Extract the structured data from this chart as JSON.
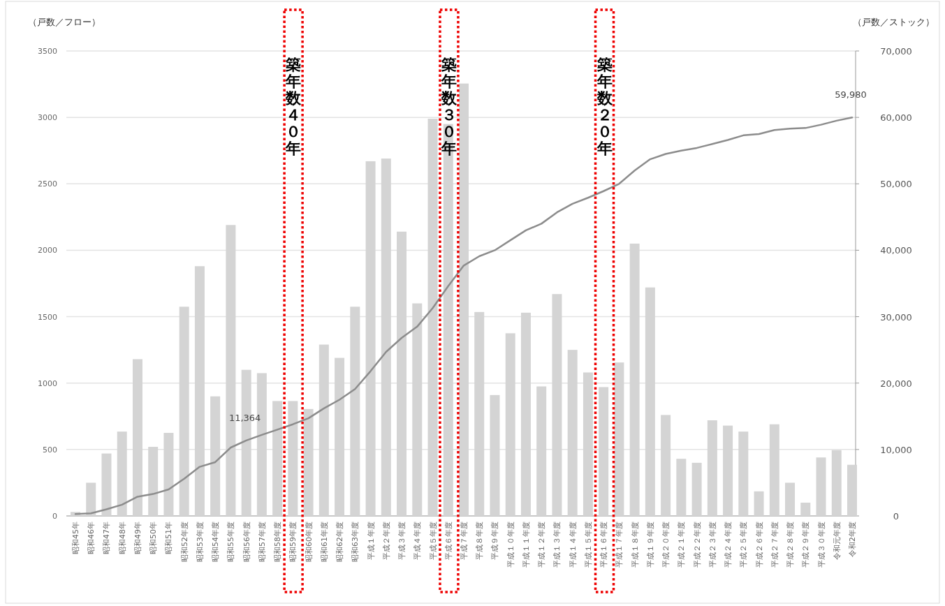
{
  "chart_data": {
    "type": "bar",
    "ylabel": "（戸数／フロー）",
    "y2label": "（戸数／ストック）",
    "categories": [
      "昭和45年",
      "昭和46年",
      "昭和47年",
      "昭和48年",
      "昭和49年",
      "昭和50年",
      "昭和51年",
      "昭和52年度",
      "昭和53年度",
      "昭和54年度",
      "昭和55年度",
      "昭和56年度",
      "昭和57年度",
      "昭和58年度",
      "昭和59年度",
      "昭和60年度",
      "昭和61年度",
      "昭和62年度",
      "昭和63年度",
      "平成１年度",
      "平成２年度",
      "平成３年度",
      "平成４年度",
      "平成５年度",
      "平成６年度",
      "平成７年度",
      "平成８年度",
      "平成９年度",
      "平成１０年度",
      "平成１１年度",
      "平成１２年度",
      "平成１３年度",
      "平成１４年度",
      "平成１５年度",
      "平成１６年度",
      "平成１７年度",
      "平成１８年度",
      "平成１９年度",
      "平成２０年度",
      "平成２１年度",
      "平成２２年度",
      "平成２３年度",
      "平成２４年度",
      "平成２５年度",
      "平成２６年度",
      "平成２７年度",
      "平成２８年度",
      "平成２９年度",
      "平成３０年度",
      "令和元年度",
      "令和2年度"
    ],
    "series": [
      {
        "color": "#d4d4d4",
        "values": [
          30,
          250,
          470,
          635,
          1180,
          520,
          625,
          1575,
          1880,
          900,
          2190,
          1100,
          1075,
          865,
          865,
          805,
          1290,
          1190,
          1575,
          2670,
          2690,
          2140,
          1600,
          2990,
          2950,
          3255,
          1535,
          910,
          1375,
          1530,
          975,
          1670,
          1250,
          1080,
          970,
          1155,
          2050,
          1720,
          760,
          430,
          400,
          720,
          680,
          635,
          185,
          690,
          250,
          100,
          440,
          495,
          385
        ]
      },
      {
        "type": "line",
        "axis": "y2",
        "color": "#8c8c8c",
        "values": [
          300,
          400,
          1000,
          1700,
          2900,
          3300,
          4000,
          5600,
          7400,
          8100,
          10300,
          11364,
          12200,
          13000,
          13800,
          14700,
          16200,
          17500,
          19100,
          21800,
          24700,
          26800,
          28500,
          31300,
          34600,
          37700,
          39100,
          40000,
          41500,
          43000,
          44000,
          45700,
          47000,
          47900,
          48900,
          50000,
          52000,
          53700,
          54500,
          55000,
          55400,
          56000,
          56600,
          57300,
          57500,
          58100,
          58300,
          58400,
          58900,
          59500,
          59980
        ],
        "value_labels": [
          null,
          null,
          null,
          null,
          null,
          null,
          null,
          null,
          null,
          null,
          null,
          "11,364",
          null,
          null,
          null,
          null,
          null,
          null,
          null,
          null,
          null,
          null,
          null,
          null,
          null,
          null,
          null,
          null,
          null,
          null,
          null,
          null,
          null,
          null,
          null,
          null,
          null,
          null,
          null,
          null,
          null,
          null,
          null,
          null,
          null,
          null,
          null,
          null,
          null,
          null,
          "59,980"
        ]
      }
    ],
    "ylim": [
      0,
      3500
    ],
    "yticks": [
      0,
      500,
      1000,
      1500,
      2000,
      2500,
      3000,
      3500
    ],
    "y2lim": [
      0,
      70000
    ],
    "y2ticks": [
      {
        "value": 0,
        "label": "0"
      },
      {
        "value": 10000,
        "label": "10,000"
      },
      {
        "value": 20000,
        "label": "20,000"
      },
      {
        "value": 30000,
        "label": "30,000"
      },
      {
        "value": 40000,
        "label": "40,000"
      },
      {
        "value": 50000,
        "label": "50,000"
      },
      {
        "value": 60000,
        "label": "60,000"
      },
      {
        "value": 70000,
        "label": "70,000"
      }
    ],
    "grid": "y",
    "annotations": [
      "築年数４０年",
      "築年数３０年",
      "築年数２０年"
    ]
  }
}
